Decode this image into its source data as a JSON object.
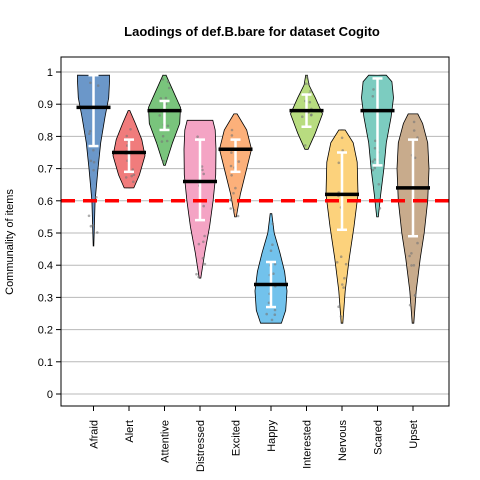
{
  "chart_data": {
    "type": "violin",
    "title": "Laodings of def.B.bare for dataset Cogito",
    "xlabel": "",
    "ylabel": "Communality of items",
    "ylim": [
      0,
      1
    ],
    "yticks": [
      "0",
      "0.1",
      "0.2",
      "0.3",
      "0.4",
      "0.5",
      "0.6",
      "0.7",
      "0.8",
      "0.9",
      "1"
    ],
    "grid": true,
    "reference_line": {
      "y": 0.6,
      "color": "#ff0000",
      "style": "dashed"
    },
    "categories": [
      "Afraid",
      "Alert",
      "Attentive",
      "Distressed",
      "Excited",
      "Happy",
      "Interested",
      "Nervous",
      "Scared",
      "Upset"
    ],
    "colors": [
      "#6b97c9",
      "#f07c7c",
      "#79c47c",
      "#f4a4c4",
      "#fcb07a",
      "#72c2ec",
      "#b8dc80",
      "#fcd27c",
      "#7cccc0",
      "#c8ab8c"
    ],
    "violins": [
      {
        "min": 0.46,
        "max": 0.99,
        "median": 0.89,
        "q1": 0.77,
        "q3": 0.99,
        "shape": [
          [
            0.46,
            0.02
          ],
          [
            0.6,
            0.1
          ],
          [
            0.7,
            0.28
          ],
          [
            0.78,
            0.45
          ],
          [
            0.86,
            0.72
          ],
          [
            0.92,
            0.95
          ],
          [
            0.97,
            1.0
          ],
          [
            0.99,
            1.0
          ]
        ]
      },
      {
        "min": 0.64,
        "max": 0.88,
        "median": 0.75,
        "q1": 0.69,
        "q3": 0.79,
        "shape": [
          [
            0.64,
            0.3
          ],
          [
            0.68,
            0.65
          ],
          [
            0.74,
            1.0
          ],
          [
            0.79,
            0.8
          ],
          [
            0.84,
            0.4
          ],
          [
            0.88,
            0.05
          ]
        ]
      },
      {
        "min": 0.71,
        "max": 0.99,
        "median": 0.88,
        "q1": 0.82,
        "q3": 0.91,
        "shape": [
          [
            0.71,
            0.05
          ],
          [
            0.78,
            0.5
          ],
          [
            0.84,
            0.95
          ],
          [
            0.89,
            1.0
          ],
          [
            0.94,
            0.55
          ],
          [
            0.99,
            0.1
          ]
        ]
      },
      {
        "min": 0.36,
        "max": 0.85,
        "median": 0.66,
        "q1": 0.54,
        "q3": 0.79,
        "shape": [
          [
            0.36,
            0.05
          ],
          [
            0.44,
            0.3
          ],
          [
            0.52,
            0.6
          ],
          [
            0.6,
            0.82
          ],
          [
            0.68,
            0.98
          ],
          [
            0.76,
            1.0
          ],
          [
            0.82,
            0.95
          ],
          [
            0.85,
            0.8
          ]
        ]
      },
      {
        "min": 0.55,
        "max": 0.87,
        "median": 0.76,
        "q1": 0.69,
        "q3": 0.79,
        "shape": [
          [
            0.55,
            0.05
          ],
          [
            0.62,
            0.3
          ],
          [
            0.7,
            0.7
          ],
          [
            0.76,
            1.0
          ],
          [
            0.82,
            0.7
          ],
          [
            0.87,
            0.1
          ]
        ]
      },
      {
        "min": 0.22,
        "max": 0.56,
        "median": 0.34,
        "q1": 0.27,
        "q3": 0.41,
        "shape": [
          [
            0.22,
            0.65
          ],
          [
            0.26,
            0.92
          ],
          [
            0.32,
            1.0
          ],
          [
            0.38,
            0.85
          ],
          [
            0.44,
            0.55
          ],
          [
            0.5,
            0.2
          ],
          [
            0.56,
            0.05
          ]
        ]
      },
      {
        "min": 0.76,
        "max": 0.99,
        "median": 0.88,
        "q1": 0.83,
        "q3": 0.93,
        "shape": [
          [
            0.76,
            0.1
          ],
          [
            0.81,
            0.55
          ],
          [
            0.87,
            1.0
          ],
          [
            0.92,
            0.55
          ],
          [
            0.96,
            0.15
          ],
          [
            0.99,
            0.05
          ]
        ]
      },
      {
        "min": 0.22,
        "max": 0.82,
        "median": 0.62,
        "q1": 0.51,
        "q3": 0.75,
        "shape": [
          [
            0.22,
            0.05
          ],
          [
            0.32,
            0.2
          ],
          [
            0.42,
            0.45
          ],
          [
            0.52,
            0.75
          ],
          [
            0.62,
            1.0
          ],
          [
            0.72,
            0.95
          ],
          [
            0.78,
            0.7
          ],
          [
            0.82,
            0.2
          ]
        ]
      },
      {
        "min": 0.55,
        "max": 0.99,
        "median": 0.88,
        "q1": 0.71,
        "q3": 0.98,
        "shape": [
          [
            0.55,
            0.05
          ],
          [
            0.62,
            0.2
          ],
          [
            0.7,
            0.4
          ],
          [
            0.78,
            0.55
          ],
          [
            0.86,
            0.85
          ],
          [
            0.92,
            1.0
          ],
          [
            0.97,
            0.9
          ],
          [
            0.99,
            0.55
          ]
        ]
      },
      {
        "min": 0.22,
        "max": 0.87,
        "median": 0.64,
        "q1": 0.49,
        "q3": 0.79,
        "shape": [
          [
            0.22,
            0.05
          ],
          [
            0.32,
            0.2
          ],
          [
            0.42,
            0.45
          ],
          [
            0.5,
            0.7
          ],
          [
            0.6,
            0.92
          ],
          [
            0.7,
            1.0
          ],
          [
            0.78,
            0.92
          ],
          [
            0.84,
            0.6
          ],
          [
            0.87,
            0.3
          ]
        ]
      }
    ]
  }
}
